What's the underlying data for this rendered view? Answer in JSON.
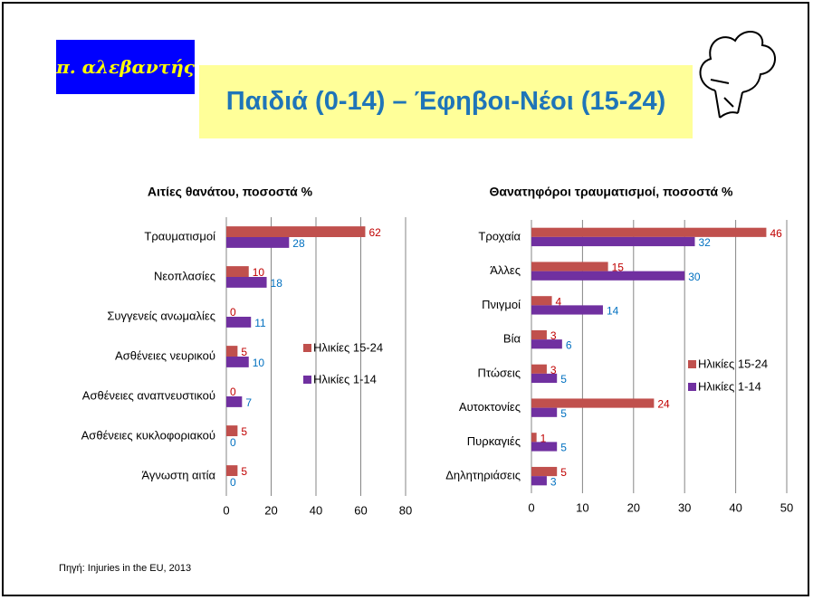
{
  "logo": "π. αλεβαντής",
  "title": "Παιδιά (0-14) – Έφηβοι-Νέοι (15-24)",
  "source": "Πηγή: Injuries in the EU, 2013",
  "chart_data": [
    {
      "type": "bar",
      "orientation": "horizontal",
      "title": "Αιτίες θανάτου, ποσοστά %",
      "categories": [
        "Τραυματισμοί",
        "Νεοπλασίες",
        "Συγγενείς ανωμαλίες",
        "Ασθένειες νευρικού",
        "Ασθένειες αναπνευστικού",
        "Ασθένειες κυκλοφοριακού",
        "Άγνωστη αιτία"
      ],
      "series": [
        {
          "name": "Ηλικίες 15-24",
          "color": "#c0504d",
          "label_color": "#c00000",
          "values": [
            62,
            10,
            0,
            5,
            0,
            5,
            5
          ]
        },
        {
          "name": "Ηλικίες 1-14",
          "color": "#7030a0",
          "label_color": "#0070c0",
          "values": [
            28,
            18,
            11,
            10,
            7,
            0,
            0
          ]
        }
      ],
      "xlim": [
        0,
        80
      ],
      "xticks": [
        0,
        20,
        40,
        60,
        80
      ],
      "grid": true,
      "legend": "right"
    },
    {
      "type": "bar",
      "orientation": "horizontal",
      "title": "Θανατηφόροι τραυματισμοί, ποσοστά %",
      "categories": [
        "Τροχαία",
        "Άλλες",
        "Πνιγμοί",
        "Βία",
        "Πτώσεις",
        "Αυτοκτονίες",
        "Πυρκαγιές",
        "Δηλητηριάσεις"
      ],
      "series": [
        {
          "name": "Ηλικίες 15-24",
          "color": "#c0504d",
          "label_color": "#c00000",
          "values": [
            46,
            15,
            4,
            3,
            3,
            24,
            1,
            5
          ]
        },
        {
          "name": "Ηλικίες 1-14",
          "color": "#7030a0",
          "label_color": "#0070c0",
          "values": [
            32,
            30,
            14,
            6,
            5,
            5,
            5,
            3
          ]
        }
      ],
      "xlim": [
        0,
        50
      ],
      "xticks": [
        0,
        10,
        20,
        30,
        40,
        50
      ],
      "grid": true,
      "legend": "right"
    }
  ]
}
